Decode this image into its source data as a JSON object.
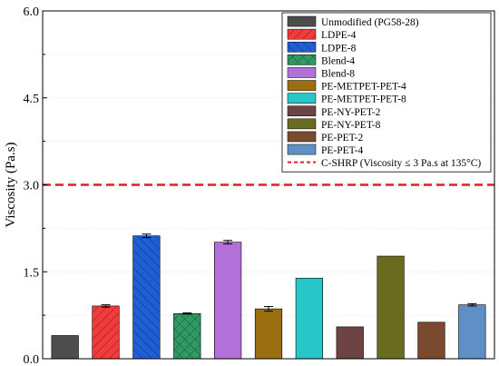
{
  "chart_data": {
    "type": "bar",
    "title": "",
    "xlabel": "",
    "ylabel": "Viscosity (Pa.s)",
    "ylim": [
      0,
      6
    ],
    "yticks": [
      "0.0",
      "1.5",
      "3.0",
      "4.5",
      "6.0"
    ],
    "grid": true,
    "legend_position": "top-right",
    "series": [
      {
        "name": "Unmodified (PG58-28)",
        "value": 0.4,
        "error": 0.0,
        "color": "#4d4d4d",
        "pattern": "none"
      },
      {
        "name": "LDPE-4",
        "value": 0.91,
        "error": 0.02,
        "color": "#f23c3c",
        "pattern": "diag-right"
      },
      {
        "name": "LDPE-8",
        "value": 2.12,
        "error": 0.03,
        "color": "#1f5fd6",
        "pattern": "diag-left"
      },
      {
        "name": "Blend-4",
        "value": 0.78,
        "error": 0.01,
        "color": "#2f9a64",
        "pattern": "cross"
      },
      {
        "name": "Blend-8",
        "value": 2.01,
        "error": 0.03,
        "color": "#b271d8",
        "pattern": "none"
      },
      {
        "name": "PE-METPET-PET-4",
        "value": 0.86,
        "error": 0.04,
        "color": "#9a6f10",
        "pattern": "none"
      },
      {
        "name": "PE-METPET-PET-8",
        "value": 1.39,
        "error": 0.0,
        "color": "#28c6c6",
        "pattern": "none"
      },
      {
        "name": "PE-NY-PET-2",
        "value": 0.55,
        "error": 0.0,
        "color": "#6e4343",
        "pattern": "none"
      },
      {
        "name": "PE-NY-PET-8",
        "value": 1.77,
        "error": 0.0,
        "color": "#6b6b1e",
        "pattern": "none"
      },
      {
        "name": "PE-PET-2",
        "value": 0.63,
        "error": 0.0,
        "color": "#7a4a2e",
        "pattern": "none"
      },
      {
        "name": "PE-PET-4",
        "value": 0.93,
        "error": 0.02,
        "color": "#5f8fc4",
        "pattern": "none"
      }
    ],
    "reference_line": {
      "name": "C-SHRP (Viscosity ≤ 3 Pa.s at 135°C)",
      "value": 3.0,
      "color": "#e02020"
    }
  }
}
